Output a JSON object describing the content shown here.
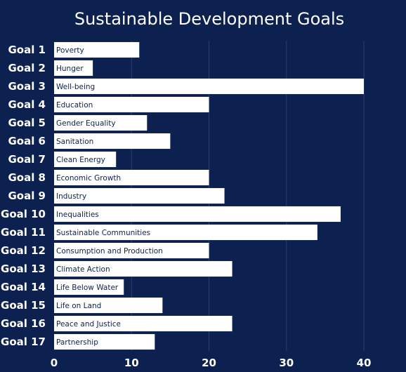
{
  "chart_data": {
    "type": "bar",
    "orientation": "horizontal",
    "title": "Sustainable Development Goals",
    "xlabel": "",
    "ylabel": "",
    "xlim": [
      0,
      40
    ],
    "xticks": [
      0,
      10,
      20,
      30,
      40
    ],
    "grid": "vertical",
    "categories": [
      "Goal 1",
      "Goal 2",
      "Goal 3",
      "Goal 4",
      "Goal 5",
      "Goal 6",
      "Goal 7",
      "Goal 8",
      "Goal 9",
      "Goal 10",
      "Goal 11",
      "Goal 12",
      "Goal 13",
      "Goal 14",
      "Goal 15",
      "Goal 16",
      "Goal 17"
    ],
    "bar_labels": [
      "Poverty",
      "Hunger",
      "Well-being",
      "Education",
      "Gender Equality",
      "Sanitation",
      "Clean Energy",
      "Economic Growth",
      "Industry",
      "Inequalities",
      "Sustainable Communities",
      "Consumption and Production",
      "Climate Action",
      "Life Below Water",
      "Life on Land",
      "Peace and Justice",
      "Partnership"
    ],
    "values": [
      11,
      5,
      40,
      20,
      12,
      15,
      8,
      20,
      22,
      37,
      34,
      20,
      23,
      9,
      14,
      23,
      13
    ],
    "colors": {
      "background": "#0d2150",
      "bar": "#ffffff",
      "bar_text": "#0d2150",
      "text": "#ffffff",
      "grid": "#2a3f6a"
    }
  }
}
